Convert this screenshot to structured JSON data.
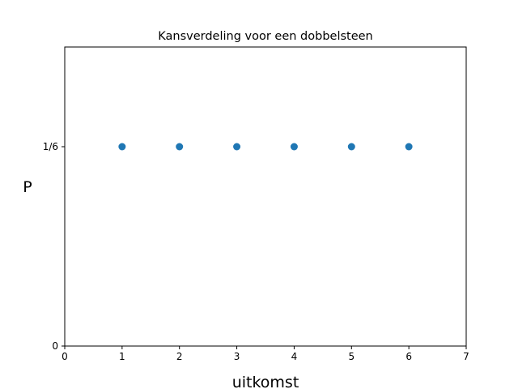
{
  "chart_data": {
    "type": "scatter",
    "title": "Kansverdeling voor een dobbelsteen",
    "xlabel": "uitkomst",
    "ylabel": "P",
    "xlim": [
      0,
      7
    ],
    "ylim": [
      0,
      0.25
    ],
    "x_ticks": [
      {
        "value": 0,
        "label": "0"
      },
      {
        "value": 1,
        "label": "1"
      },
      {
        "value": 2,
        "label": "2"
      },
      {
        "value": 3,
        "label": "3"
      },
      {
        "value": 4,
        "label": "4"
      },
      {
        "value": 5,
        "label": "5"
      },
      {
        "value": 6,
        "label": "6"
      },
      {
        "value": 7,
        "label": "7"
      }
    ],
    "y_ticks": [
      {
        "value": 0,
        "label": "0"
      },
      {
        "value": 0.16667,
        "label": "1/6"
      }
    ],
    "grid": false,
    "series": [
      {
        "color": "#1f77b4",
        "x": [
          1,
          2,
          3,
          4,
          5,
          6
        ],
        "y": [
          0.16667,
          0.16667,
          0.16667,
          0.16667,
          0.16667,
          0.16667
        ]
      }
    ]
  }
}
